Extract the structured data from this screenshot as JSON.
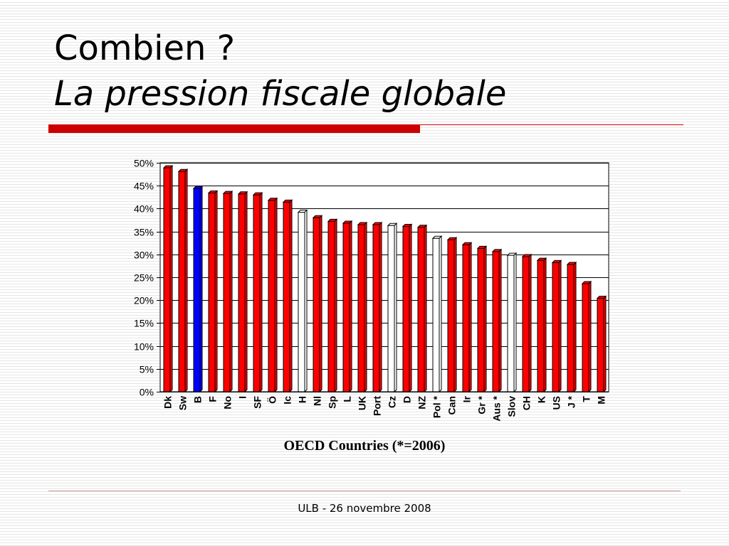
{
  "slide": {
    "title_line1": "Combien ?",
    "title_line2": "La pression fiscale globale",
    "footer": "ULB - 26 novembre 2008",
    "accent_color": "#cc0000"
  },
  "chart_data": {
    "type": "bar",
    "xlabel": "OECD Countries (*=2006)",
    "ylabel": "",
    "ylim": [
      0,
      0.5
    ],
    "y_ticks": [
      "0%",
      "5%",
      "10%",
      "15%",
      "20%",
      "25%",
      "30%",
      "35%",
      "40%",
      "45%",
      "50%"
    ],
    "grid": true,
    "legend": "none",
    "categories": [
      "Dk",
      "Sw",
      "B",
      "F",
      "No",
      "I",
      "SF",
      "Ö",
      "Ic",
      "H",
      "Nl",
      "Sp",
      "L",
      "UK",
      "Port",
      "Cz",
      "D",
      "NZ",
      "Pol *",
      "Can",
      "Ir",
      "Gr *",
      "Aus *",
      "Slov",
      "CH",
      "K",
      "US",
      "J *",
      "T",
      "M"
    ],
    "values": [
      0.489,
      0.481,
      0.444,
      0.434,
      0.433,
      0.432,
      0.43,
      0.418,
      0.414,
      0.392,
      0.38,
      0.372,
      0.368,
      0.365,
      0.365,
      0.363,
      0.361,
      0.359,
      0.335,
      0.332,
      0.321,
      0.313,
      0.306,
      0.298,
      0.295,
      0.287,
      0.282,
      0.278,
      0.236,
      0.204
    ],
    "bar_colors": [
      "red",
      "red",
      "blue",
      "red",
      "red",
      "red",
      "red",
      "red",
      "red",
      "white",
      "red",
      "red",
      "red",
      "red",
      "red",
      "white",
      "red",
      "red",
      "white",
      "red",
      "red",
      "red",
      "red",
      "white",
      "red",
      "red",
      "red",
      "red",
      "red",
      "red"
    ],
    "color_map": {
      "red": "#ff0000",
      "blue": "#0000ff",
      "white": "#ffffff"
    }
  }
}
